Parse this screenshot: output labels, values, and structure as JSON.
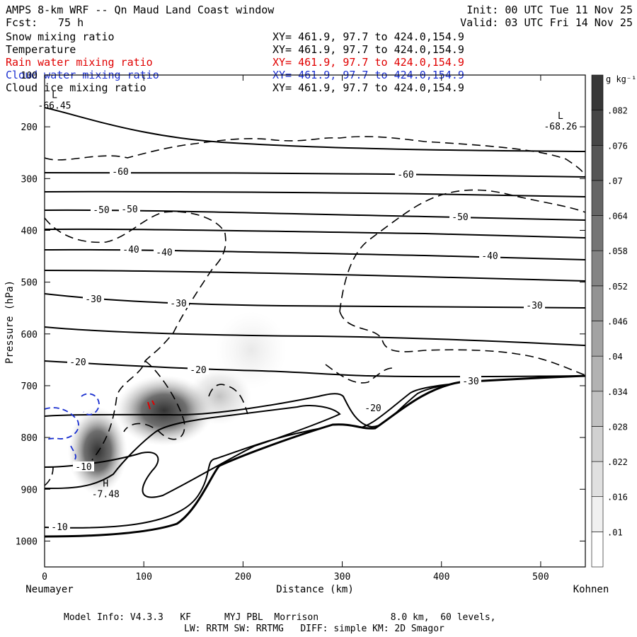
{
  "header": {
    "title": "AMPS 8-km WRF -- Qn Maud Land Coast window",
    "fcst_label": "Fcst:",
    "fcst_value": "75 h",
    "init": "Init: 00 UTC Tue 11 Nov 25",
    "valid": "Valid: 03 UTC Fri 14 Nov 25"
  },
  "fields": [
    {
      "name": "Snow mixing ratio",
      "xy": "XY= 461.9, 97.7 to 424.0,154.9",
      "color": "#000000"
    },
    {
      "name": "Temperature",
      "xy": "XY= 461.9, 97.7 to 424.0,154.9",
      "color": "#000000"
    },
    {
      "name": "Rain water mixing ratio",
      "xy": "XY= 461.9, 97.7 to 424.0,154.9",
      "color": "#e00000"
    },
    {
      "name": "Cloud water mixing ratio",
      "xy": "XY= 461.9, 97.7 to 424.0,154.9",
      "color": "#1a2fd0"
    },
    {
      "name": "Cloud ice mixing ratio",
      "xy": "XY= 461.9, 97.7 to 424.0,154.9",
      "color": "#000000"
    }
  ],
  "footer": {
    "line1": "Model Info: V4.3.3   KF      MYJ PBL  Morrison             8.0 km,  60 levels,",
    "line2": "LW: RRTM SW: RRTMG   DIFF: simple KM: 2D Smagor"
  },
  "chart_data": {
    "type": "heatmap",
    "xlabel": "Distance (km)",
    "ylabel": "Pressure (hPa)",
    "x_start_label": "Neumayer",
    "x_end_label": "Kohnen",
    "xlim": [
      0,
      545
    ],
    "ylim": [
      1050,
      100
    ],
    "x_ticks": [
      0,
      100,
      200,
      300,
      400,
      500
    ],
    "y_ticks": [
      100,
      200,
      300,
      400,
      500,
      600,
      700,
      800,
      900,
      1000
    ],
    "colorbar": {
      "unit": "g kg⁻¹",
      "levels": [
        ".01",
        ".016",
        ".022",
        ".028",
        ".034",
        ".04",
        ".046",
        ".052",
        ".058",
        ".064",
        ".07",
        ".076",
        ".082"
      ]
    },
    "temperature_labels": [
      "-60",
      "-60",
      "-50",
      "-50",
      "-50",
      "-40",
      "-40",
      "-40",
      "-30",
      "-30",
      "-30",
      "-20",
      "-20",
      "-20",
      "-30",
      "-10",
      "-10"
    ],
    "extrema": [
      {
        "type": "L",
        "value": "-66.45",
        "x": 10,
        "p": 150
      },
      {
        "type": "L",
        "value": "-68.26",
        "x": 520,
        "p": 190
      },
      {
        "type": "H",
        "value": "-7.48",
        "x": 58,
        "p": 900
      }
    ],
    "snow_maxima": [
      {
        "x": 55,
        "p": 830,
        "value": 0.082
      },
      {
        "x": 120,
        "p": 770,
        "value": 0.08
      },
      {
        "x": 160,
        "p": 740,
        "value": 0.05
      },
      {
        "x": 225,
        "p": 620,
        "value": 0.012
      }
    ]
  }
}
